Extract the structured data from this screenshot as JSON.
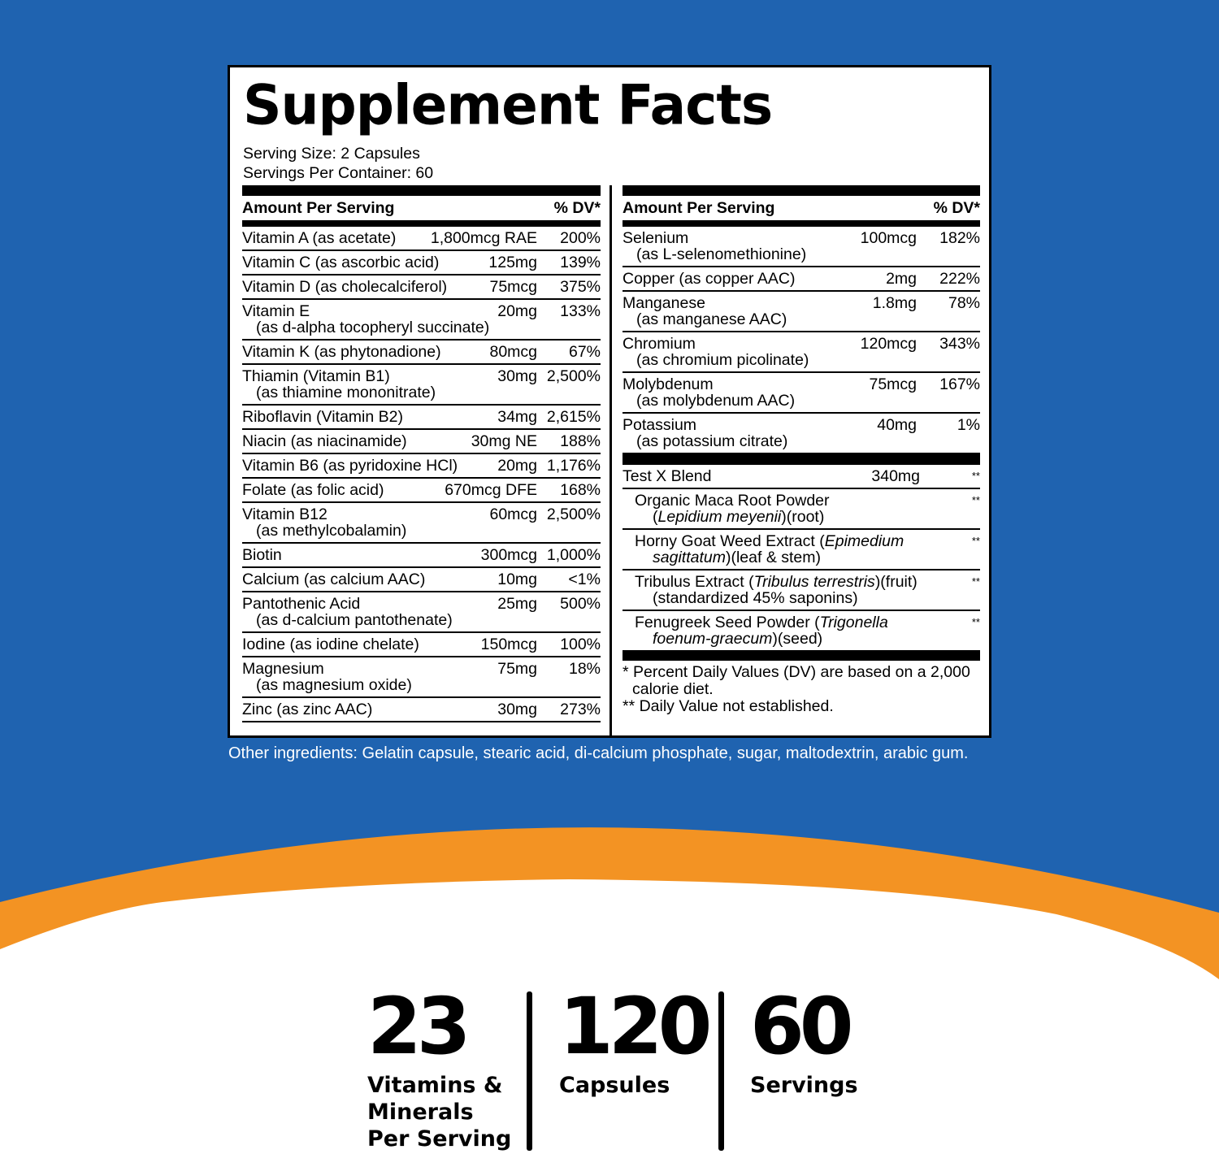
{
  "colors": {
    "background_blue": "#1f63b0",
    "accent_orange": "#f39323",
    "panel": "#ffffff",
    "text": "#000000"
  },
  "label": {
    "title": "Supplement Facts",
    "serving_size": "Serving Size: 2 Capsules",
    "servings_per_container": "Servings Per Container: 60",
    "header_amount": "Amount Per Serving",
    "header_dv": "% DV*",
    "left_rows": [
      {
        "name": "Vitamin A (as acetate)",
        "sub": "",
        "amount": "1,800mcg RAE",
        "dv": "200%"
      },
      {
        "name": "Vitamin C (as ascorbic acid)",
        "sub": "",
        "amount": "125mg",
        "dv": "139%"
      },
      {
        "name": "Vitamin D (as cholecalciferol)",
        "sub": "",
        "amount": "75mcg",
        "dv": "375%"
      },
      {
        "name": "Vitamin E",
        "sub": "(as d-alpha tocopheryl succinate)",
        "amount": "20mg",
        "dv": "133%"
      },
      {
        "name": "Vitamin K (as phytonadione)",
        "sub": "",
        "amount": "80mcg",
        "dv": "67%"
      },
      {
        "name": "Thiamin (Vitamin B1)",
        "sub": "(as thiamine mononitrate)",
        "amount": "30mg",
        "dv": "2,500%"
      },
      {
        "name": "Riboflavin (Vitamin B2)",
        "sub": "",
        "amount": "34mg",
        "dv": "2,615%"
      },
      {
        "name": "Niacin (as niacinamide)",
        "sub": "",
        "amount": "30mg NE",
        "dv": "188%"
      },
      {
        "name": "Vitamin B6 (as pyridoxine HCl)",
        "sub": "",
        "amount": "20mg",
        "dv": "1,176%"
      },
      {
        "name": "Folate (as folic acid)",
        "sub": "",
        "amount": "670mcg DFE",
        "dv": "168%"
      },
      {
        "name": "Vitamin B12",
        "sub": "(as methylcobalamin)",
        "amount": "60mcg",
        "dv": "2,500%"
      },
      {
        "name": "Biotin",
        "sub": "",
        "amount": "300mcg",
        "dv": "1,000%"
      },
      {
        "name": "Calcium (as calcium AAC)",
        "sub": "",
        "amount": "10mg",
        "dv": "<1%"
      },
      {
        "name": "Pantothenic Acid",
        "sub": "(as d-calcium pantothenate)",
        "amount": "25mg",
        "dv": "500%"
      },
      {
        "name": "Iodine (as iodine chelate)",
        "sub": "",
        "amount": "150mcg",
        "dv": "100%"
      },
      {
        "name": "Magnesium",
        "sub": "(as magnesium oxide)",
        "amount": "75mg",
        "dv": "18%"
      },
      {
        "name": "Zinc (as zinc AAC)",
        "sub": "",
        "amount": "30mg",
        "dv": "273%"
      }
    ],
    "right_rows": [
      {
        "name": "Selenium",
        "sub": "(as L-selenomethionine)",
        "amount": "100mcg",
        "dv": "182%"
      },
      {
        "name": "Copper (as copper AAC)",
        "sub": "",
        "amount": "2mg",
        "dv": "222%"
      },
      {
        "name": "Manganese",
        "sub": "(as manganese AAC)",
        "amount": "1.8mg",
        "dv": "78%"
      },
      {
        "name": "Chromium",
        "sub": "(as chromium picolinate)",
        "amount": "120mcg",
        "dv": "343%"
      },
      {
        "name": "Molybdenum",
        "sub": "(as molybdenum AAC)",
        "amount": "75mcg",
        "dv": "167%"
      },
      {
        "name": "Potassium",
        "sub": "(as potassium citrate)",
        "amount": "40mg",
        "dv": "1%"
      }
    ],
    "blend": {
      "name": "Test X Blend",
      "amount": "340mg",
      "dv": "**"
    },
    "blend_items": [
      {
        "name": "Organic Maca Root Powder",
        "sub_open": "(",
        "sub_italic": "Lepidium meyenii",
        "sub_rest": ")(root)",
        "dv": "**"
      },
      {
        "name": "Horny Goat Weed Extract (",
        "name_italic": "Epimedium",
        "sub_italic": "sagittatum",
        "sub_rest": ")(leaf & stem)",
        "dv": "**"
      },
      {
        "name": "Tribulus Extract (",
        "name_italic": "Tribulus terrestris",
        "name_rest": ")(fruit)",
        "sub_rest": "(standardized 45% saponins)",
        "dv": "**"
      },
      {
        "name": "Fenugreek Seed Powder (",
        "name_italic": "Trigonella",
        "sub_italic": "foenum-graecum",
        "sub_rest": ")(seed)",
        "dv": "**"
      }
    ],
    "footnote_1a": "* Percent Daily Values (DV) are based on a 2,000",
    "footnote_1b": "calorie diet.",
    "footnote_2": "** Daily Value not established."
  },
  "other_ingredients": "Other ingredients: Gelatin capsule, stearic acid, di-calcium phosphate, sugar, maltodextrin, arabic gum.",
  "stats": [
    {
      "number": "23",
      "label_lines": [
        "Vitamins &",
        "Minerals",
        "Per Serving"
      ]
    },
    {
      "number": "120",
      "label_lines": [
        "Capsules"
      ]
    },
    {
      "number": "60",
      "label_lines": [
        "Servings"
      ]
    }
  ]
}
